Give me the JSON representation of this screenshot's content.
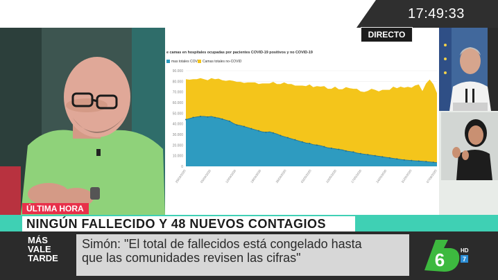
{
  "clock": "17:49:33",
  "live_badge": "DIRECTO",
  "chart": {
    "title": "e camas en hospitales ocupadas por pacientes COVID-19 positivos y no COVID-19",
    "legend": [
      {
        "label": "mas totales COVID",
        "color": "#2e9bc0"
      },
      {
        "label": "Camas totales no-COVID",
        "color": "#f4c51b"
      }
    ]
  },
  "chart_data": {
    "type": "area",
    "title": "e camas en hospitales ocupadas por pacientes COVID-19 positivos y no COVID-19",
    "ylim": [
      0,
      90000
    ],
    "y_ticks": [
      "0",
      "10.000",
      "20.000",
      "30.000",
      "40.000",
      "50.000",
      "60.000",
      "70.000",
      "80.000",
      "90.000"
    ],
    "x_ticks": [
      "29/03/2020",
      "05/04/2020",
      "12/04/2020",
      "19/04/2020",
      "26/04/2020",
      "03/05/2020",
      "10/05/2020",
      "17/05/2020",
      "24/05/2020",
      "31/05/2020",
      "07/06/2020"
    ],
    "x_count": 70,
    "series": [
      {
        "name": "mas totales COVID",
        "color": "#2e9bc0",
        "values": [
          44000,
          45000,
          46000,
          46500,
          47000,
          47000,
          46500,
          47000,
          46000,
          45500,
          44500,
          43500,
          42500,
          40500,
          39000,
          38500,
          37500,
          36500,
          35500,
          34500,
          33500,
          32500,
          32000,
          32500,
          31500,
          30500,
          29000,
          28000,
          27000,
          26000,
          25000,
          24000,
          23000,
          22000,
          21500,
          20500,
          20000,
          19500,
          18500,
          17500,
          17000,
          16500,
          16000,
          15500,
          14500,
          14000,
          13500,
          12500,
          12000,
          11500,
          11000,
          10500,
          10000,
          9500,
          9000,
          8500,
          8000,
          7500,
          7000,
          6500,
          6000,
          5800,
          5500,
          5200,
          5000,
          4800,
          4500,
          4200,
          3800,
          3500
        ]
      },
      {
        "name": "Camas totales no-COVID",
        "color": "#f4c51b",
        "values": [
          38000,
          36500,
          36000,
          35500,
          36000,
          35000,
          34500,
          36000,
          36000,
          37000,
          36500,
          37000,
          38500,
          40000,
          40500,
          41000,
          41000,
          42500,
          43500,
          44500,
          44000,
          45500,
          46000,
          45500,
          48000,
          47000,
          48500,
          51000,
          50500,
          51500,
          51000,
          52000,
          53000,
          53500,
          55500,
          54000,
          55500,
          55500,
          57000,
          55500,
          56000,
          58500,
          56500,
          57000,
          60000,
          59500,
          59500,
          60500,
          58500,
          58500,
          60000,
          62500,
          62000,
          61000,
          63000,
          63500,
          64000,
          67500,
          66500,
          68500,
          68000,
          69000,
          68500,
          71000,
          72000,
          66000,
          73500,
          77500,
          73500,
          65500
        ]
      }
    ]
  },
  "lower_third": {
    "breaking": "ÚLTIMA HORA",
    "headline": "NINGÚN FALLECIDO Y 48 NUEVOS CONTAGIOS",
    "quote_line1": "Simón: \"El total de fallecidos está congelado hasta",
    "quote_line2": "que las comunidades revisen las cifras\""
  },
  "program_logo": [
    "MÁS",
    "VALE",
    "TARDE"
  ],
  "channel_logo": {
    "main": "6",
    "hd": "HD",
    "rating": "7"
  }
}
